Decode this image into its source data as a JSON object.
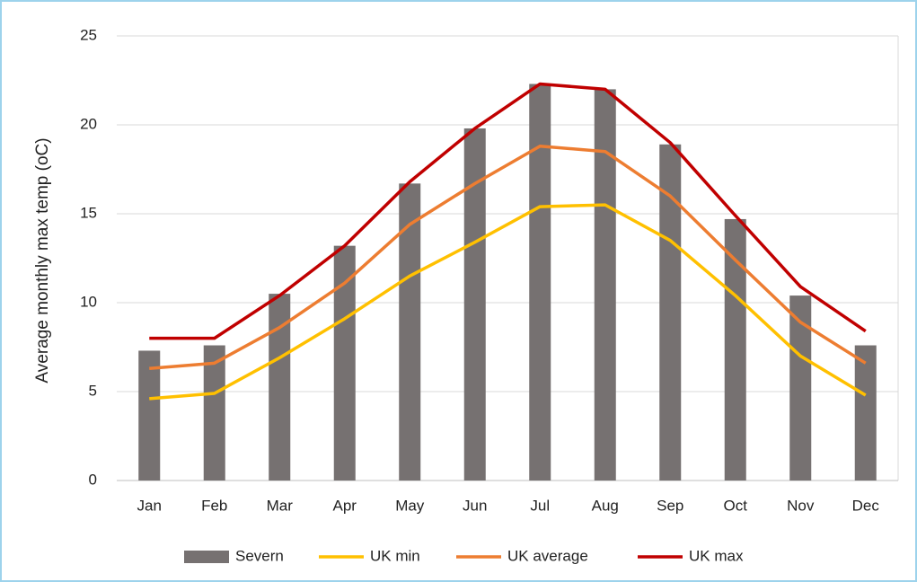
{
  "chart_data": {
    "type": "bar",
    "y_label": "Average monthly max temp (oC)",
    "categories": [
      "Jan",
      "Feb",
      "Mar",
      "Apr",
      "May",
      "Jun",
      "Jul",
      "Aug",
      "Sep",
      "Oct",
      "Nov",
      "Dec"
    ],
    "series": [
      {
        "name": "Severn",
        "type": "bar",
        "color": "#767171",
        "values": [
          7.3,
          7.6,
          10.5,
          13.2,
          16.7,
          19.8,
          22.3,
          22.0,
          18.9,
          14.7,
          10.4,
          7.6
        ]
      },
      {
        "name": "UK min",
        "type": "line",
        "color": "#ffc000",
        "values": [
          4.6,
          4.9,
          6.9,
          9.1,
          11.5,
          13.4,
          15.4,
          15.5,
          13.5,
          10.4,
          7.0,
          4.8
        ]
      },
      {
        "name": "UK average",
        "type": "line",
        "color": "#ed7d31",
        "values": [
          6.3,
          6.6,
          8.6,
          11.1,
          14.4,
          16.7,
          18.8,
          18.5,
          16.0,
          12.4,
          8.9,
          6.6
        ]
      },
      {
        "name": "UK max",
        "type": "line",
        "color": "#c00000",
        "values": [
          8.0,
          8.0,
          10.4,
          13.2,
          16.8,
          19.8,
          22.3,
          22.0,
          19.0,
          14.9,
          10.9,
          8.4
        ]
      }
    ],
    "ylim": [
      0,
      25
    ],
    "yticks": [
      0,
      5,
      10,
      15,
      20,
      25
    ],
    "grid": true,
    "legend": "bottom"
  }
}
